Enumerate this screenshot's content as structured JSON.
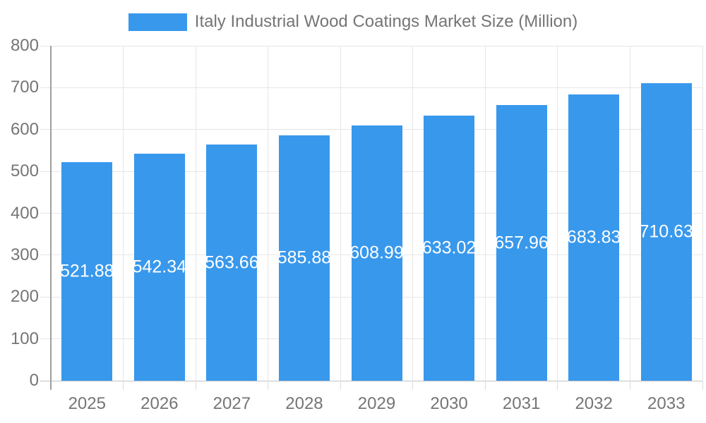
{
  "legend": {
    "label": "Italy Industrial Wood Coatings Market Size (Million)",
    "swatch_color": "#3898ec"
  },
  "chart_data": {
    "type": "bar",
    "title": "Italy Industrial Wood Coatings Market Size (Million)",
    "categories": [
      "2025",
      "2026",
      "2027",
      "2028",
      "2029",
      "2030",
      "2031",
      "2032",
      "2033"
    ],
    "series": [
      {
        "name": "Italy Industrial Wood Coatings Market Size (Million)",
        "values": [
          521.88,
          542.34,
          563.66,
          585.88,
          608.99,
          633.02,
          657.96,
          683.83,
          710.63
        ]
      }
    ],
    "value_labels": [
      "521.88",
      "542.34",
      "563.66",
      "585.88",
      "608.99",
      "633.02",
      "657.96",
      "683.83",
      "710.63"
    ],
    "xlabel": "",
    "ylabel": "",
    "ylim": [
      0,
      800
    ],
    "ytick_interval": 100,
    "yticks": [
      0,
      100,
      200,
      300,
      400,
      500,
      600,
      700,
      800
    ],
    "grid": true,
    "legend_position": "top-center",
    "colors": {
      "bar": "#3898ec",
      "value_label_text": "#ffffff",
      "axis_text": "#757575",
      "gridline": "#e6e6e6",
      "baseline": "#c2c2c2",
      "axis_line": "#9e9e9e"
    }
  }
}
